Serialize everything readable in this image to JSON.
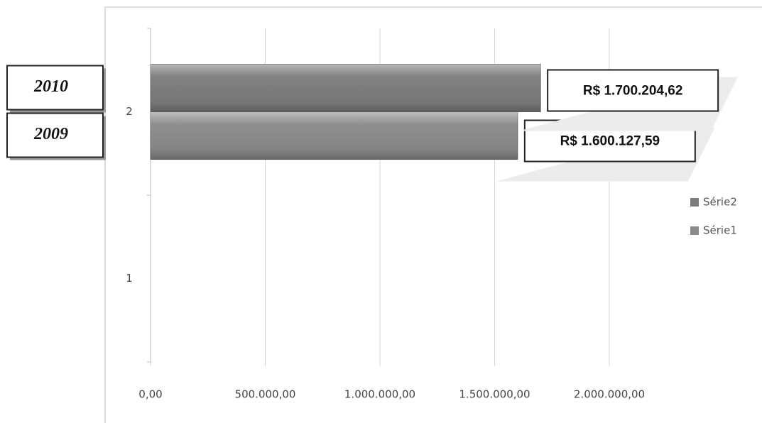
{
  "chart_data": {
    "type": "bar",
    "orientation": "horizontal",
    "categories": [
      "1",
      "2"
    ],
    "series": [
      {
        "name": "Série1",
        "color": "#8a8a8a",
        "values": [
          0,
          1600127.59
        ],
        "value_labels": [
          null,
          "R$ 1.600.127,59"
        ]
      },
      {
        "name": "Série2",
        "color": "#7c7c7c",
        "values": [
          0,
          1700204.62
        ],
        "value_labels": [
          null,
          "R$ 1.700.204,62"
        ]
      }
    ],
    "annotations": [
      "2009",
      "2010"
    ],
    "xlim": [
      0,
      2000000
    ],
    "xticks": [
      {
        "value": 0,
        "label": "0,00"
      },
      {
        "value": 500000,
        "label": "500.000,00"
      },
      {
        "value": 1000000,
        "label": "1.000.000,00"
      },
      {
        "value": 1500000,
        "label": "1.500.000,00"
      },
      {
        "value": 2000000,
        "label": "2.000.000,00"
      }
    ],
    "grid": true,
    "legend": "right"
  }
}
